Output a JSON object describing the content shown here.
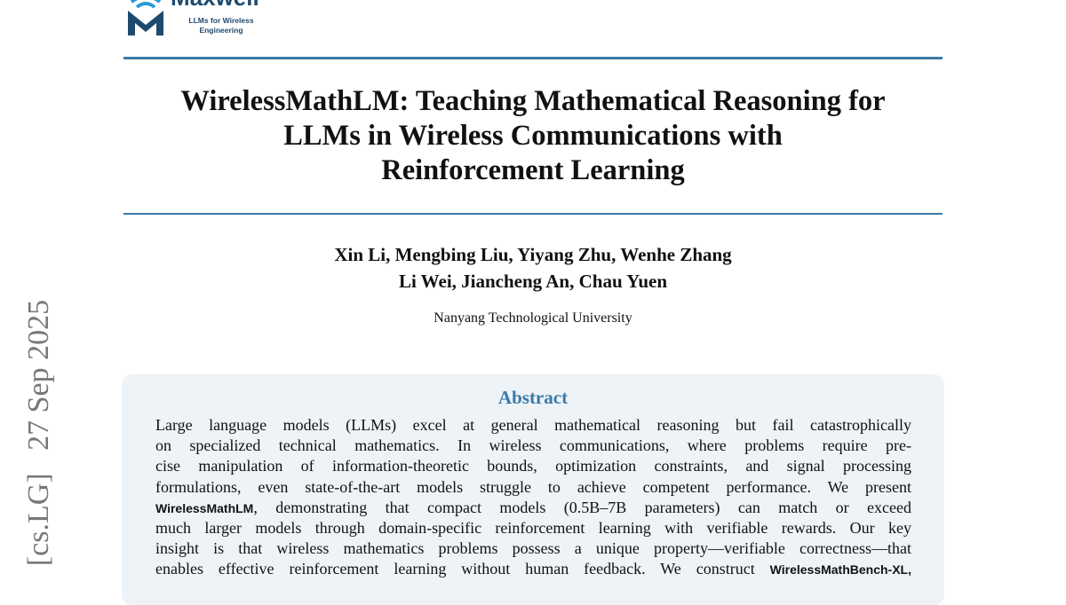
{
  "logo": {
    "name": "Maxwell",
    "tagline_1": "LLMs for Wireless",
    "tagline_2": "Engineering",
    "color": "#1e4a6e",
    "accent": "#2a9ad6"
  },
  "title": [
    "WirelessMathLM: Teaching Mathematical Reasoning for",
    "LLMs in Wireless Communications with",
    "Reinforcement Learning"
  ],
  "authors": [
    "Xin Li, Mengbing Liu, Yiyang Zhu, Wenhe Zhang",
    "Li Wei, Jiancheng An, Chau Yuen"
  ],
  "affiliation": "Nanyang Technological University",
  "arxiv_stamp": "[cs.LG]   27 Sep 2025",
  "abstract": {
    "heading": "Abstract",
    "lines": [
      {
        "pre": "Large language models (LLMs) excel at general mathematical reasoning but fail catastrophically",
        "bold": "",
        "post": ""
      },
      {
        "pre": "on specialized technical mathematics.  In wireless communications, where problems require pre-",
        "bold": "",
        "post": ""
      },
      {
        "pre": "cise manipulation of information-theoretic bounds, optimization constraints, and signal processing",
        "bold": "",
        "post": ""
      },
      {
        "pre": "formulations, even state-of-the-art models struggle to achieve competent performance. We present",
        "bold": "",
        "post": ""
      },
      {
        "pre": "",
        "bold": "WirelessMathLM",
        "post": ", demonstrating that compact models (0.5B–7B parameters) can match or exceed"
      },
      {
        "pre": "much larger models through domain-specific reinforcement learning with verifiable rewards. Our key",
        "bold": "",
        "post": ""
      },
      {
        "pre": "insight is that wireless mathematics problems possess a unique property—verifiable correctness—that",
        "bold": "",
        "post": ""
      },
      {
        "pre": "enables effective reinforcement learning without human feedback. We construct ",
        "bold": "WirelessMathBench-XL,",
        "post": ""
      }
    ]
  },
  "colors": {
    "rule": "#3b7aa8",
    "abstract_bg": "#eef3f8"
  }
}
